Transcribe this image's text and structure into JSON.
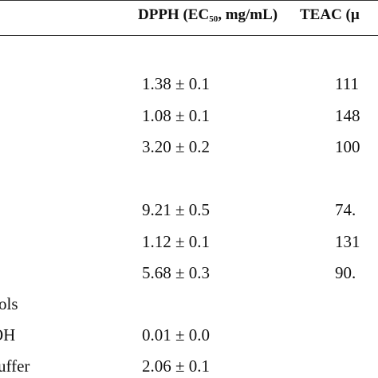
{
  "table": {
    "header": {
      "dpph_prefix": "DPPH (EC",
      "dpph_sub": "50",
      "dpph_suffix": ", mg/mL)",
      "teac": "TEAC (µ"
    },
    "rows": [
      {
        "dpph": "1.38 ± 0.1",
        "teac": "111"
      },
      {
        "dpph": "1.08 ± 0.1",
        "teac": "148"
      },
      {
        "dpph": "3.20 ± 0.2",
        "teac": "100"
      },
      {
        "dpph": "9.21 ± 0.5",
        "teac": "74."
      },
      {
        "dpph": "1.12 ± 0.1",
        "teac": "131"
      },
      {
        "dpph": "5.68 ± 0.3",
        "teac": "90."
      }
    ],
    "section_label": "ols",
    "controls": [
      {
        "label": "OH",
        "dpph": "0.01 ± 0.0"
      },
      {
        "label": "uffer",
        "dpph": "2.06 ± 0.1"
      }
    ]
  }
}
